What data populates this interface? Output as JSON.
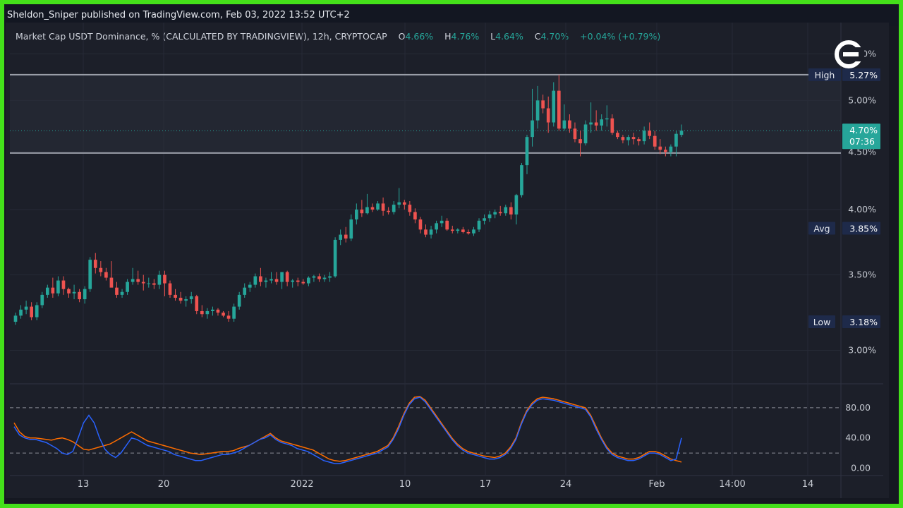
{
  "publisher_line": "Sheldon_Sniper published on TradingView.com, Feb 03, 2022 13:52 UTC+2",
  "legend": {
    "title": "Market Cap USDT Dominance, % (CALCULATED BY TRADINGVIEW), 12h, CRYPTOCAP",
    "o_label": "O",
    "o_value": "4.66%",
    "h_label": "H",
    "h_value": "4.76%",
    "l_label": "L",
    "l_value": "4.64%",
    "c_label": "C",
    "c_value": "4.70%",
    "change": "+0.04% (+0.79%)"
  },
  "logo_icon": "c-exchange-logo-icon",
  "colors": {
    "up": "#26a69a",
    "down": "#ef5350",
    "stoch_k": "#2962ff",
    "stoch_d": "#ff6d00",
    "price_label": "#26a69a",
    "marker_label": "#1e2a4a"
  },
  "chart_data": [
    {
      "type": "candlestick",
      "y_scale": "log",
      "ylim": [
        2.85,
        5.55
      ],
      "y_ticks": [
        "3.00%",
        "3.50%",
        "4.00%",
        "4.50%",
        "5.00%",
        "5.50%"
      ],
      "x_ticks": [
        "13",
        "20",
        "2022",
        "10",
        "17",
        "24",
        "Feb",
        "14:00",
        "14"
      ],
      "markers": [
        {
          "label": "High",
          "value": "5.27%"
        },
        {
          "label": "Avg",
          "value": "3.85%"
        },
        {
          "label": "Low",
          "value": "3.18%"
        }
      ],
      "last_price": "4.70%",
      "countdown": "07:36",
      "levels": [
        5.27,
        4.49
      ],
      "last_value": 4.7,
      "candles_ohlc": [
        [
          3.18,
          3.24,
          3.16,
          3.22
        ],
        [
          3.22,
          3.29,
          3.2,
          3.26
        ],
        [
          3.26,
          3.32,
          3.23,
          3.28
        ],
        [
          3.28,
          3.31,
          3.19,
          3.21
        ],
        [
          3.21,
          3.31,
          3.19,
          3.29
        ],
        [
          3.29,
          3.38,
          3.27,
          3.36
        ],
        [
          3.36,
          3.43,
          3.34,
          3.41
        ],
        [
          3.41,
          3.48,
          3.34,
          3.37
        ],
        [
          3.37,
          3.49,
          3.35,
          3.46
        ],
        [
          3.46,
          3.49,
          3.36,
          3.4
        ],
        [
          3.4,
          3.41,
          3.34,
          3.37
        ],
        [
          3.37,
          3.43,
          3.33,
          3.38
        ],
        [
          3.38,
          3.4,
          3.31,
          3.33
        ],
        [
          3.33,
          3.42,
          3.3,
          3.4
        ],
        [
          3.4,
          3.63,
          3.38,
          3.61
        ],
        [
          3.61,
          3.66,
          3.51,
          3.55
        ],
        [
          3.55,
          3.6,
          3.49,
          3.52
        ],
        [
          3.52,
          3.55,
          3.46,
          3.48
        ],
        [
          3.48,
          3.6,
          3.45,
          3.41
        ],
        [
          3.41,
          3.45,
          3.34,
          3.36
        ],
        [
          3.36,
          3.4,
          3.34,
          3.38
        ],
        [
          3.38,
          3.47,
          3.36,
          3.45
        ],
        [
          3.45,
          3.55,
          3.43,
          3.47
        ],
        [
          3.47,
          3.53,
          3.43,
          3.45
        ],
        [
          3.45,
          3.5,
          3.39,
          3.44
        ],
        [
          3.44,
          3.48,
          3.41,
          3.44
        ],
        [
          3.44,
          3.47,
          3.4,
          3.43
        ],
        [
          3.43,
          3.53,
          3.4,
          3.5
        ],
        [
          3.5,
          3.53,
          3.35,
          3.44
        ],
        [
          3.44,
          3.46,
          3.34,
          3.36
        ],
        [
          3.36,
          3.4,
          3.32,
          3.34
        ],
        [
          3.34,
          3.38,
          3.3,
          3.32
        ],
        [
          3.32,
          3.35,
          3.28,
          3.33
        ],
        [
          3.33,
          3.38,
          3.3,
          3.35
        ],
        [
          3.35,
          3.36,
          3.23,
          3.25
        ],
        [
          3.25,
          3.29,
          3.21,
          3.23
        ],
        [
          3.23,
          3.27,
          3.2,
          3.25
        ],
        [
          3.25,
          3.28,
          3.22,
          3.26
        ],
        [
          3.26,
          3.27,
          3.22,
          3.24
        ],
        [
          3.24,
          3.25,
          3.21,
          3.22
        ],
        [
          3.22,
          3.25,
          3.18,
          3.2
        ],
        [
          3.2,
          3.3,
          3.18,
          3.28
        ],
        [
          3.28,
          3.38,
          3.26,
          3.36
        ],
        [
          3.36,
          3.44,
          3.34,
          3.41
        ],
        [
          3.41,
          3.45,
          3.38,
          3.43
        ],
        [
          3.43,
          3.51,
          3.41,
          3.49
        ],
        [
          3.49,
          3.55,
          3.42,
          3.45
        ],
        [
          3.45,
          3.48,
          3.41,
          3.46
        ],
        [
          3.46,
          3.52,
          3.44,
          3.47
        ],
        [
          3.47,
          3.52,
          3.43,
          3.45
        ],
        [
          3.45,
          3.5,
          3.4,
          3.52
        ],
        [
          3.52,
          3.53,
          3.42,
          3.45
        ],
        [
          3.45,
          3.47,
          3.41,
          3.46
        ],
        [
          3.46,
          3.48,
          3.42,
          3.45
        ],
        [
          3.45,
          3.47,
          3.43,
          3.44
        ],
        [
          3.44,
          3.49,
          3.42,
          3.48
        ],
        [
          3.48,
          3.5,
          3.45,
          3.49
        ],
        [
          3.49,
          3.51,
          3.45,
          3.47
        ],
        [
          3.47,
          3.5,
          3.45,
          3.48
        ],
        [
          3.48,
          3.52,
          3.45,
          3.49
        ],
        [
          3.49,
          3.78,
          3.48,
          3.76
        ],
        [
          3.76,
          3.84,
          3.72,
          3.8
        ],
        [
          3.8,
          3.86,
          3.74,
          3.77
        ],
        [
          3.77,
          3.96,
          3.75,
          3.92
        ],
        [
          3.92,
          4.05,
          3.88,
          4.0
        ],
        [
          4.0,
          4.08,
          3.94,
          3.97
        ],
        [
          3.97,
          4.13,
          3.96,
          4.02
        ],
        [
          4.02,
          4.05,
          3.98,
          4.0
        ],
        [
          4.0,
          4.07,
          3.99,
          4.05
        ],
        [
          4.05,
          4.1,
          3.95,
          3.99
        ],
        [
          3.99,
          4.02,
          3.96,
          3.98
        ],
        [
          3.98,
          4.07,
          3.96,
          4.04
        ],
        [
          4.04,
          4.18,
          4.01,
          4.06
        ],
        [
          4.06,
          4.08,
          4.0,
          4.04
        ],
        [
          4.04,
          4.07,
          3.95,
          3.98
        ],
        [
          3.98,
          4.01,
          3.89,
          3.92
        ],
        [
          3.92,
          3.94,
          3.81,
          3.84
        ],
        [
          3.84,
          3.88,
          3.78,
          3.8
        ],
        [
          3.8,
          3.87,
          3.77,
          3.84
        ],
        [
          3.84,
          3.91,
          3.81,
          3.89
        ],
        [
          3.89,
          3.95,
          3.86,
          3.91
        ],
        [
          3.91,
          3.93,
          3.83,
          3.84
        ],
        [
          3.84,
          3.87,
          3.81,
          3.83
        ],
        [
          3.83,
          3.85,
          3.81,
          3.84
        ],
        [
          3.84,
          3.86,
          3.81,
          3.82
        ],
        [
          3.82,
          3.84,
          3.8,
          3.81
        ],
        [
          3.81,
          3.86,
          3.79,
          3.84
        ],
        [
          3.84,
          3.93,
          3.82,
          3.91
        ],
        [
          3.91,
          3.96,
          3.88,
          3.93
        ],
        [
          3.93,
          3.99,
          3.9,
          3.96
        ],
        [
          3.96,
          4.0,
          3.93,
          3.98
        ],
        [
          3.98,
          4.03,
          3.95,
          3.97
        ],
        [
          3.97,
          4.04,
          3.95,
          4.02
        ],
        [
          4.02,
          4.06,
          3.92,
          3.96
        ],
        [
          3.96,
          4.13,
          3.88,
          4.12
        ],
        [
          4.12,
          4.4,
          4.1,
          4.38
        ],
        [
          4.38,
          4.66,
          4.3,
          4.64
        ],
        [
          4.64,
          5.12,
          4.55,
          4.8
        ],
        [
          4.8,
          5.15,
          4.72,
          5.0
        ],
        [
          5.0,
          5.06,
          4.87,
          4.92
        ],
        [
          4.92,
          5.04,
          4.68,
          4.78
        ],
        [
          4.78,
          5.19,
          4.74,
          5.1
        ],
        [
          5.1,
          5.27,
          4.7,
          4.72
        ],
        [
          4.72,
          4.96,
          4.7,
          4.8
        ],
        [
          4.8,
          4.86,
          4.68,
          4.72
        ],
        [
          4.72,
          4.78,
          4.59,
          4.62
        ],
        [
          4.62,
          4.7,
          4.46,
          4.58
        ],
        [
          4.58,
          4.8,
          4.56,
          4.76
        ],
        [
          4.76,
          4.98,
          4.68,
          4.78
        ],
        [
          4.78,
          4.9,
          4.7,
          4.75
        ],
        [
          4.75,
          4.86,
          4.7,
          4.81
        ],
        [
          4.81,
          4.95,
          4.74,
          4.82
        ],
        [
          4.82,
          4.86,
          4.66,
          4.68
        ],
        [
          4.68,
          4.7,
          4.62,
          4.64
        ],
        [
          4.64,
          4.66,
          4.58,
          4.61
        ],
        [
          4.61,
          4.66,
          4.56,
          4.64
        ],
        [
          4.64,
          4.68,
          4.57,
          4.62
        ],
        [
          4.62,
          4.64,
          4.56,
          4.6
        ],
        [
          4.6,
          4.74,
          4.57,
          4.7
        ],
        [
          4.7,
          4.78,
          4.62,
          4.65
        ],
        [
          4.65,
          4.7,
          4.52,
          4.55
        ],
        [
          4.55,
          4.62,
          4.48,
          4.52
        ],
        [
          4.52,
          4.55,
          4.46,
          4.5
        ],
        [
          4.5,
          4.57,
          4.46,
          4.55
        ],
        [
          4.55,
          4.7,
          4.46,
          4.67
        ],
        [
          4.66,
          4.76,
          4.64,
          4.7
        ]
      ]
    },
    {
      "type": "line",
      "name": "Stochastic",
      "ylim": [
        -8,
        108
      ],
      "y_ticks": [
        "0.00",
        "40.00",
        "80.00"
      ],
      "bands": [
        80,
        20
      ],
      "series": [
        {
          "values": [
            60,
            48,
            42,
            40,
            40,
            39,
            38,
            37,
            39,
            40,
            38,
            35,
            30,
            25,
            24,
            26,
            28,
            30,
            32,
            36,
            40,
            44,
            48,
            44,
            40,
            36,
            34,
            32,
            30,
            28,
            26,
            24,
            22,
            20,
            19,
            18,
            19,
            20,
            21,
            22,
            22,
            23,
            26,
            28,
            30,
            34,
            38,
            42,
            46,
            40,
            36,
            34,
            32,
            30,
            28,
            26,
            24,
            20,
            16,
            12,
            10,
            9,
            10,
            12,
            14,
            16,
            18,
            20,
            22,
            26,
            30,
            40,
            55,
            72,
            86,
            94,
            95,
            90,
            80,
            70,
            60,
            50,
            40,
            32,
            26,
            22,
            20,
            18,
            16,
            15,
            14,
            16,
            20,
            28,
            40,
            60,
            76,
            86,
            92,
            94,
            93,
            92,
            90,
            88,
            86,
            84,
            82,
            80,
            70,
            55,
            40,
            28,
            20,
            16,
            14,
            12,
            12,
            14,
            18,
            22,
            22,
            20,
            16,
            12,
            10,
            8
          ]
        },
        {
          "values": [
            55,
            44,
            40,
            38,
            38,
            36,
            34,
            30,
            26,
            20,
            18,
            22,
            40,
            60,
            70,
            60,
            40,
            25,
            18,
            14,
            20,
            30,
            40,
            38,
            34,
            30,
            28,
            26,
            24,
            22,
            18,
            16,
            14,
            12,
            10,
            10,
            12,
            14,
            16,
            18,
            18,
            20,
            22,
            26,
            30,
            34,
            38,
            40,
            44,
            38,
            34,
            32,
            30,
            26,
            24,
            22,
            18,
            14,
            10,
            8,
            6,
            6,
            8,
            10,
            12,
            14,
            16,
            18,
            20,
            24,
            28,
            38,
            52,
            70,
            84,
            92,
            94,
            88,
            78,
            68,
            58,
            48,
            38,
            30,
            24,
            20,
            18,
            16,
            14,
            12,
            12,
            14,
            18,
            26,
            38,
            58,
            74,
            84,
            90,
            92,
            91,
            90,
            88,
            86,
            84,
            82,
            80,
            78,
            68,
            52,
            38,
            26,
            18,
            14,
            12,
            10,
            10,
            12,
            16,
            20,
            20,
            18,
            14,
            10,
            12,
            40
          ]
        }
      ]
    }
  ]
}
